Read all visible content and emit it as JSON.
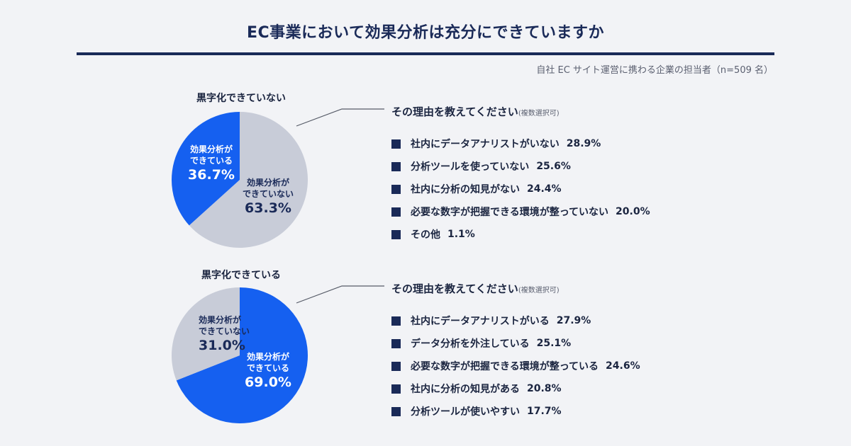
{
  "header": {
    "title": "EC事業において効果分析は充分にできていますか",
    "source": "自社 EC サイト運営に携わる企業の担当者（n=509 名）"
  },
  "colors": {
    "navy": "#1a2a58",
    "blue": "#1560f0",
    "gray": "#c8ccd8",
    "white": "#ffffff"
  },
  "chart_data": [
    {
      "type": "pie",
      "title": "黒字化できていない",
      "slices": [
        {
          "label_line1": "効果分析が",
          "label_line2": "できていない",
          "value": 63.3,
          "value_text": "63.3%",
          "color": "#c8ccd8"
        },
        {
          "label_line1": "効果分析が",
          "label_line2": "できている",
          "value": 36.7,
          "value_text": "36.7%",
          "color": "#1560f0"
        }
      ]
    },
    {
      "type": "pie",
      "title": "黒字化できている",
      "slices": [
        {
          "label_line1": "効果分析が",
          "label_line2": "できている",
          "value": 69.0,
          "value_text": "69.0%",
          "color": "#1560f0"
        },
        {
          "label_line1": "効果分析が",
          "label_line2": "できていない",
          "value": 31.0,
          "value_text": "31.0%",
          "color": "#c8ccd8"
        }
      ]
    },
    {
      "type": "table",
      "title": "その理由を教えてください",
      "note": "(複数選択可)",
      "rows": [
        {
          "label": "社内にデータアナリストがいない",
          "value": 28.9,
          "value_text": "28.9%"
        },
        {
          "label": "分析ツールを使っていない",
          "value": 25.6,
          "value_text": "25.6%"
        },
        {
          "label": "社内に分析の知見がない",
          "value": 24.4,
          "value_text": "24.4%"
        },
        {
          "label": "必要な数字が把握できる環境が整っていない",
          "value": 20.0,
          "value_text": "20.0%"
        },
        {
          "label": "その他",
          "value": 1.1,
          "value_text": "1.1%"
        }
      ]
    },
    {
      "type": "table",
      "title": "その理由を教えてください",
      "note": "(複数選択可)",
      "rows": [
        {
          "label": "社内にデータアナリストがいる",
          "value": 27.9,
          "value_text": "27.9%"
        },
        {
          "label": "データ分析を外注している",
          "value": 25.1,
          "value_text": "25.1%"
        },
        {
          "label": "必要な数字が把握できる環境が整っている",
          "value": 24.6,
          "value_text": "24.6%"
        },
        {
          "label": "社内に分析の知見がある",
          "value": 20.8,
          "value_text": "20.8%"
        },
        {
          "label": "分析ツールが使いやすい",
          "value": 17.7,
          "value_text": "17.7%"
        }
      ]
    }
  ]
}
